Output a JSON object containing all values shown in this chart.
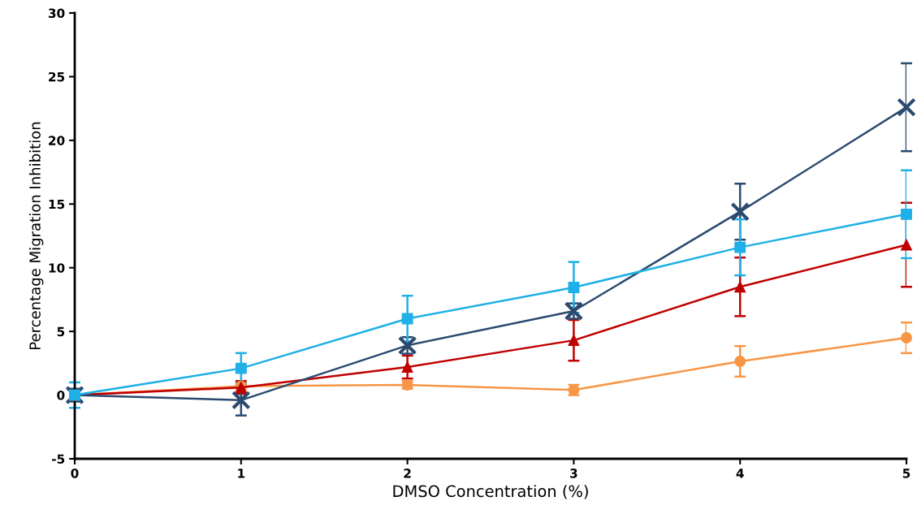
{
  "chart_data": {
    "type": "line",
    "xlabel": "DMSO Concentration (%)",
    "ylabel": "Percentage Migration Inhibition",
    "x": [
      0,
      1,
      2,
      3,
      4,
      5
    ],
    "series": [
      {
        "color": "#f79646",
        "marker": "circle",
        "values": [
          0,
          0.7,
          0.8,
          0.4,
          2.65,
          4.5
        ],
        "errors": [
          null,
          0.3,
          0.3,
          0.4,
          1.2,
          1.2
        ]
      },
      {
        "color": "#c00000",
        "marker": "triangle",
        "values": [
          0,
          0.6,
          2.2,
          4.3,
          8.5,
          11.8
        ],
        "errors": [
          null,
          0.5,
          0.9,
          1.6,
          2.3,
          3.3
        ]
      },
      {
        "color": "#2b4a6f",
        "marker": "cross",
        "values": [
          0,
          -0.4,
          3.9,
          6.6,
          14.4,
          22.6
        ],
        "errors": [
          0.5,
          1.2,
          0.65,
          0.6,
          2.2,
          3.45
        ]
      },
      {
        "color": "#1eb0e6",
        "marker": "square",
        "values": [
          0,
          2.1,
          6.0,
          8.45,
          11.6,
          14.2
        ],
        "errors": [
          1.0,
          1.2,
          1.8,
          2.0,
          2.2,
          3.45
        ]
      }
    ],
    "xlim": [
      0,
      5
    ],
    "xticks": [
      0,
      1,
      2,
      3,
      4,
      5
    ],
    "ylim": [
      -5,
      30
    ],
    "yticks": [
      -5,
      0,
      5,
      10,
      15,
      20,
      25,
      30
    ],
    "grid": false,
    "legend": false,
    "line_style": "solid"
  }
}
